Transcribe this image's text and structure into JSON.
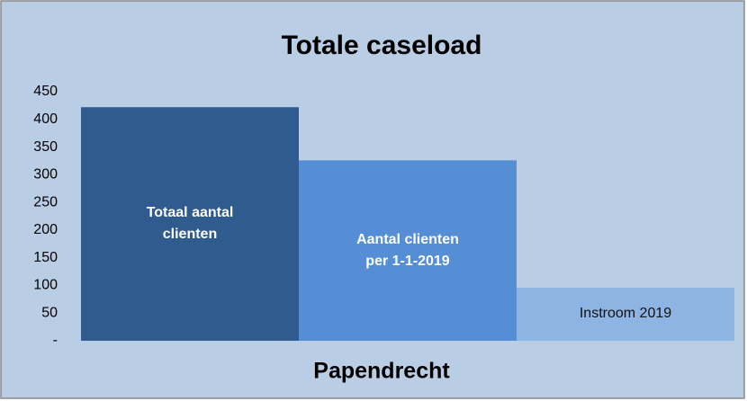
{
  "chart_data": {
    "type": "bar",
    "title": "Totale caseload",
    "x_label": "Papendrecht",
    "series": [
      {
        "name": "Totaal aantal clienten",
        "color": "#2f5b8e",
        "values": [
          422
        ]
      },
      {
        "name": "Aantal clienten per 1-1-2019",
        "color": "#558ed5",
        "values": [
          326
        ]
      },
      {
        "name": "Instroom 2019",
        "color": "#8eb4e3",
        "values": [
          96
        ]
      }
    ],
    "ylim": [
      0,
      450
    ],
    "yticks": [
      {
        "value": 0,
        "label": "-"
      },
      50,
      100,
      150,
      200,
      250,
      300,
      350,
      400,
      450
    ],
    "grid": false
  }
}
